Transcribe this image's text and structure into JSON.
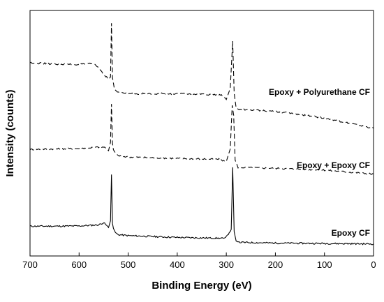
{
  "chart_data": {
    "type": "line",
    "title": "",
    "xlabel": "Binding Energy (eV)",
    "ylabel": "Intensity (counts)",
    "xlim": [
      700,
      0
    ],
    "x_reversed": true,
    "x_ticks": [
      700,
      600,
      500,
      400,
      300,
      200,
      100,
      0
    ],
    "x_tick_labels": [
      "700",
      "600",
      "500",
      "400",
      "300",
      "200",
      "100",
      "0"
    ],
    "y_ticks_shown": false,
    "grid": false,
    "legend": "none (series labelled directly on plot)",
    "series": [
      {
        "name": "Epoxy CF",
        "line_style": "solid",
        "label": "Epoxy CF",
        "points": [
          [
            700,
            4.3
          ],
          [
            650,
            4.3
          ],
          [
            600,
            4.35
          ],
          [
            560,
            4.6
          ],
          [
            550,
            5.1
          ],
          [
            540,
            4.0
          ],
          [
            536,
            5.5
          ],
          [
            534,
            15.8
          ],
          [
            532,
            4.9
          ],
          [
            530,
            3.8
          ],
          [
            526,
            2.9
          ],
          [
            520,
            2.4
          ],
          [
            500,
            2.2
          ],
          [
            400,
            1.8
          ],
          [
            305,
            1.6
          ],
          [
            300,
            1.9
          ],
          [
            290,
            3.6
          ],
          [
            287,
            17.4
          ],
          [
            284,
            3.1
          ],
          [
            280,
            1.0
          ],
          [
            274,
            0.7
          ],
          [
            200,
            0.55
          ],
          [
            100,
            0.45
          ],
          [
            0,
            0.35
          ]
        ]
      },
      {
        "name": "Epoxy + Epoxy CF",
        "line_style": "dashed",
        "label": "Epoxy + Epoxy CF",
        "points": [
          [
            700,
            21.4
          ],
          [
            650,
            21.5
          ],
          [
            600,
            21.6
          ],
          [
            560,
            21.9
          ],
          [
            548,
            21.9
          ],
          [
            540,
            21.1
          ],
          [
            536,
            23.0
          ],
          [
            534,
            31.5
          ],
          [
            532,
            22.8
          ],
          [
            530,
            21.3
          ],
          [
            526,
            20.6
          ],
          [
            520,
            20.0
          ],
          [
            500,
            19.7
          ],
          [
            400,
            19.4
          ],
          [
            315,
            19.2
          ],
          [
            300,
            18.7
          ],
          [
            292,
            21.5
          ],
          [
            288,
            31.2
          ],
          [
            285,
            29.0
          ],
          [
            282,
            19.0
          ],
          [
            276,
            17.4
          ],
          [
            200,
            17.2
          ],
          [
            100,
            16.8
          ],
          [
            0,
            15.9
          ]
        ]
      },
      {
        "name": "Epoxy + Polyurethane CF",
        "line_style": "dashed",
        "label": "Epoxy + Polyurethane CF",
        "points": [
          [
            700,
            40.7
          ],
          [
            650,
            40.4
          ],
          [
            600,
            40.3
          ],
          [
            570,
            40.5
          ],
          [
            560,
            39.6
          ],
          [
            550,
            38.2
          ],
          [
            540,
            37.0
          ],
          [
            536,
            37.5
          ],
          [
            534,
            49.5
          ],
          [
            532,
            37.4
          ],
          [
            528,
            34.8
          ],
          [
            522,
            34.2
          ],
          [
            500,
            33.8
          ],
          [
            400,
            33.8
          ],
          [
            310,
            33.5
          ],
          [
            300,
            32.5
          ],
          [
            292,
            35.0
          ],
          [
            287,
            45.5
          ],
          [
            284,
            34.0
          ],
          [
            280,
            30.5
          ],
          [
            270,
            30.3
          ],
          [
            200,
            29.9
          ],
          [
            100,
            28.4
          ],
          [
            0,
            26.1
          ]
        ]
      }
    ]
  }
}
